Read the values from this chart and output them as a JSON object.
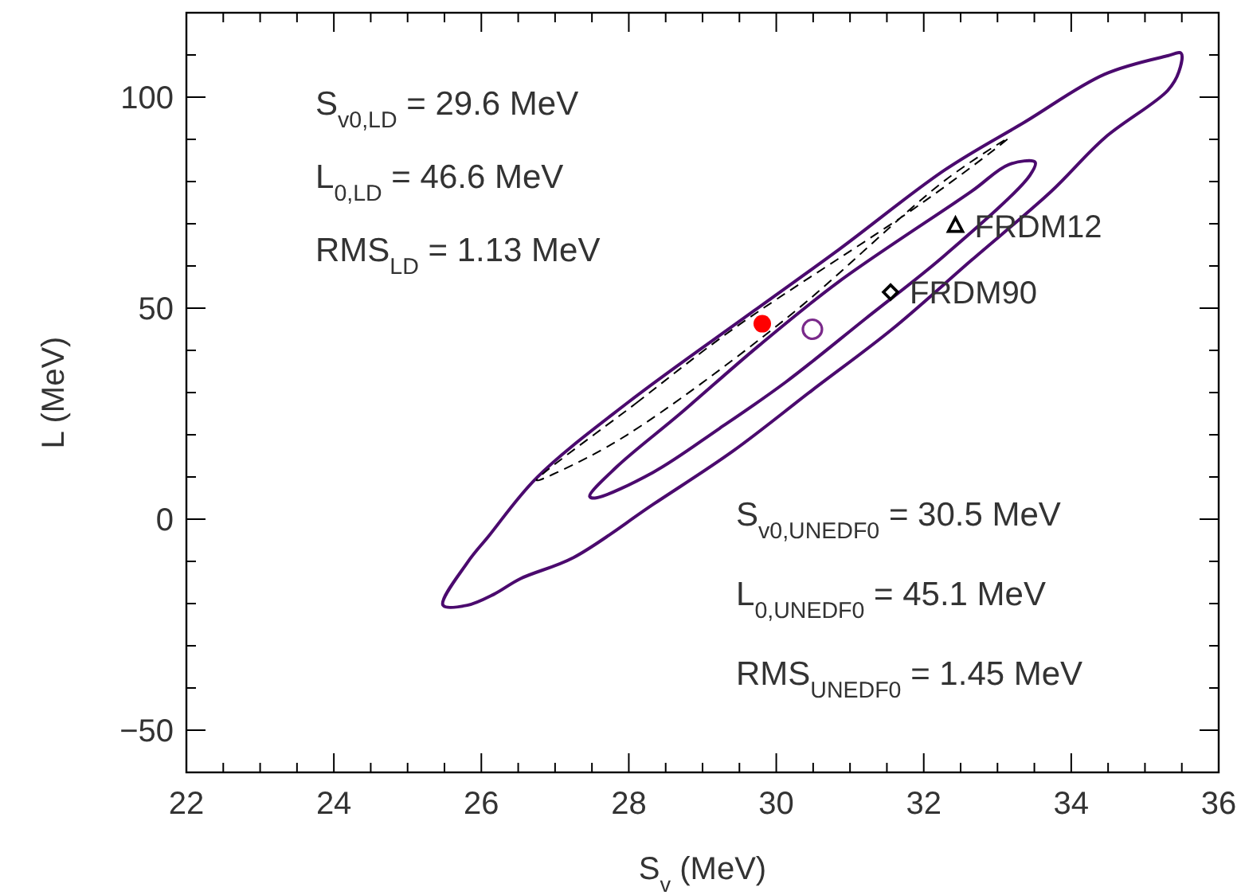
{
  "chart_data": {
    "xlabel": "S$_{v}$ (MeV)",
    "ylabel": "L (MeV)",
    "xlim": [
      22,
      36
    ],
    "ylim": [
      -60,
      120
    ],
    "xticks": [
      22,
      {
        "value": 22.5,
        "label": null
      },
      {
        "value": 23,
        "label": null
      },
      {
        "value": 23.5,
        "label": null
      },
      24,
      {
        "value": 24.5,
        "label": null
      },
      {
        "value": 25,
        "label": null
      },
      {
        "value": 25.5,
        "label": null
      },
      26,
      {
        "value": 26.5,
        "label": null
      },
      {
        "value": 27,
        "label": null
      },
      {
        "value": 27.5,
        "label": null
      },
      28,
      {
        "value": 28.5,
        "label": null
      },
      {
        "value": 29,
        "label": null
      },
      {
        "value": 29.5,
        "label": null
      },
      30,
      {
        "value": 30.5,
        "label": null
      },
      {
        "value": 31,
        "label": null
      },
      {
        "value": 31.5,
        "label": null
      },
      32,
      {
        "value": 32.5,
        "label": null
      },
      {
        "value": 33,
        "label": null
      },
      {
        "value": 33.5,
        "label": null
      },
      34,
      {
        "value": 34.5,
        "label": null
      },
      {
        "value": 35,
        "label": null
      },
      {
        "value": 35.5,
        "label": null
      },
      36
    ],
    "yticks": [
      {
        "value": -60,
        "label": null
      },
      -50,
      {
        "value": -40,
        "label": null
      },
      {
        "value": -30,
        "label": null
      },
      {
        "value": -20,
        "label": null
      },
      {
        "value": -10,
        "label": null
      },
      0,
      {
        "value": 10,
        "label": null
      },
      {
        "value": 20,
        "label": null
      },
      {
        "value": 30,
        "label": null
      },
      {
        "value": 40,
        "label": null
      },
      50,
      {
        "value": 60,
        "label": null
      },
      {
        "value": 70,
        "label": null
      },
      {
        "value": 80,
        "label": null
      },
      {
        "value": 90,
        "label": null
      },
      100,
      {
        "value": 110,
        "label": null
      },
      {
        "value": 120,
        "label": null
      }
    ],
    "type": "scatter",
    "grid": false,
    "legend": false,
    "series": [
      {
        "color": "#ff0000",
        "marker": "circle",
        "x": [
          29.81
        ],
        "values": [
          46.3
        ]
      },
      {
        "color": "#7a2a8a",
        "marker": "circle",
        "x": [
          30.49
        ],
        "values": [
          45.0
        ]
      },
      {
        "name": "FRDM12",
        "color": "#000000",
        "marker": "triangle",
        "x": [
          32.43
        ],
        "values": [
          69.5
        ]
      },
      {
        "name": "FRDM90",
        "color": "#000000",
        "marker": "diamond",
        "x": [
          31.55
        ],
        "values": [
          53.8
        ]
      }
    ],
    "annotations": [
      "S$_{v0,LD}$ = 29.6 MeV",
      "L$_{0,LD}$ = 46.6 MeV",
      "RMS$_{LD}$ = 1.13 MeV",
      "S$_{v0,UNEDF0}$ = 30.5 MeV",
      "L$_{0,UNEDF0}$ = 45.1 MeV",
      "RMS$_{UNEDF0}$ = 1.45 MeV"
    ]
  }
}
